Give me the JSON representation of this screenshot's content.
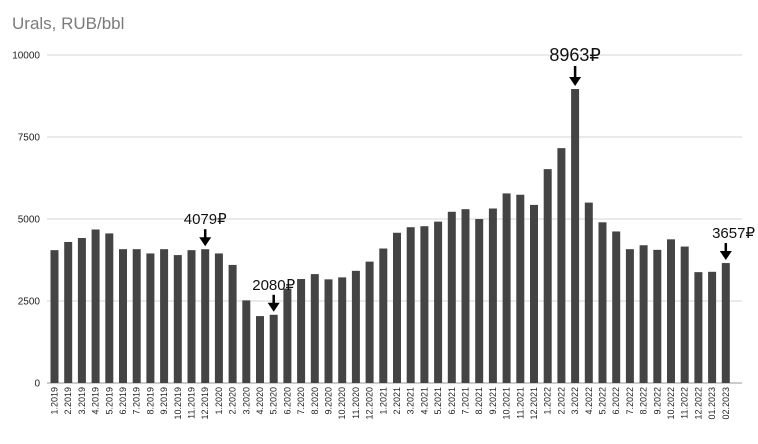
{
  "chart_data": {
    "type": "bar",
    "title": "Urals, RUB/bbl",
    "xlabel": "",
    "ylabel": "",
    "ylim": [
      0,
      10000
    ],
    "yticks": [
      0,
      2500,
      5000,
      7500,
      10000
    ],
    "grid": true,
    "bar_color": "#444444",
    "categories": [
      "1.2019",
      "2.2019",
      "3.2019",
      "4.2019",
      "5.2019",
      "6.2019",
      "7.2019",
      "8.2019",
      "9.2019",
      "10.2019",
      "11.2019",
      "12.2019",
      "1.2020",
      "2.2020",
      "3.2020",
      "4.2020",
      "5.2020",
      "6.2020",
      "7.2020",
      "8.2020",
      "9.2020",
      "10.2020",
      "11.2020",
      "12.2020",
      "1.2021",
      "2.2021",
      "3.2021",
      "4.2021",
      "5.2021",
      "6.2021",
      "7.2021",
      "8.2021",
      "9.2021",
      "10.2021",
      "11.2021",
      "12.2021",
      "1.2022",
      "2.2022",
      "3.2022",
      "4.2022",
      "5.2022",
      "6.2022",
      "7.2022",
      "8.2022",
      "9.2022",
      "10.2022",
      "11.2022",
      "12.2022",
      "01.2023",
      "02.2023"
    ],
    "values": [
      4050,
      4300,
      4420,
      4680,
      4560,
      4080,
      4080,
      3950,
      4080,
      3900,
      4050,
      4079,
      3950,
      3600,
      2520,
      2040,
      2080,
      2880,
      3170,
      3320,
      3160,
      3220,
      3420,
      3700,
      4100,
      4580,
      4750,
      4780,
      4920,
      5220,
      5300,
      5000,
      5320,
      5780,
      5740,
      5430,
      6520,
      7160,
      8963,
      5500,
      4900,
      4620,
      4080,
      4200,
      4060,
      4380,
      4160,
      3380,
      3390,
      3657
    ],
    "annotations": [
      {
        "category": "12.2019",
        "label": "4079₽"
      },
      {
        "category": "5.2020",
        "label": "2080₽"
      },
      {
        "category": "3.2022",
        "label": "8963₽"
      },
      {
        "category": "02.2023",
        "label": "3657₽"
      }
    ]
  }
}
